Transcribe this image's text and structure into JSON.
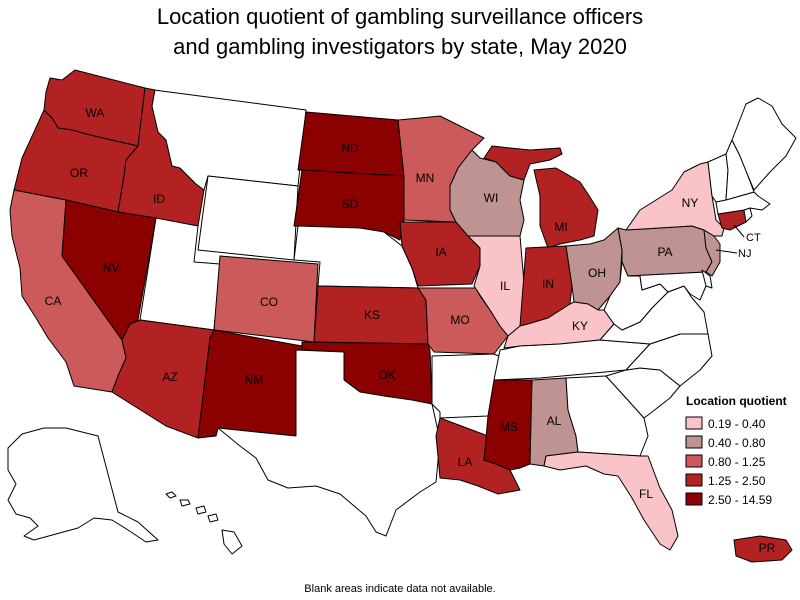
{
  "title": {
    "line1": "Location quotient of gambling surveillance officers",
    "line2": "and gambling investigators by state, May 2020"
  },
  "legend": {
    "title": "Location quotient",
    "classes": [
      {
        "label": "0.19 - 0.40",
        "color": "#f9c3c8"
      },
      {
        "label": "0.40 - 0.80",
        "color": "#bf9391"
      },
      {
        "label": "0.80 - 1.25",
        "color": "#cd5a5a"
      },
      {
        "label": "1.25 - 2.50",
        "color": "#b22222"
      },
      {
        "label": "2.50 - 14.59",
        "color": "#8b0000"
      }
    ]
  },
  "no_data_color": "#ffffff",
  "states": {
    "WA": {
      "label": "WA",
      "class": 3
    },
    "OR": {
      "label": "OR",
      "class": 3
    },
    "ID": {
      "label": "ID",
      "class": 3
    },
    "CA": {
      "label": "CA",
      "class": 2
    },
    "NV": {
      "label": "NV",
      "class": 4
    },
    "AZ": {
      "label": "AZ",
      "class": 3
    },
    "NM": {
      "label": "NM",
      "class": 4
    },
    "CO": {
      "label": "CO",
      "class": 2
    },
    "ND": {
      "label": "ND",
      "class": 4
    },
    "SD": {
      "label": "SD",
      "class": 4
    },
    "KS": {
      "label": "KS",
      "class": 3
    },
    "OK": {
      "label": "OK",
      "class": 4
    },
    "MN": {
      "label": "MN",
      "class": 2
    },
    "IA": {
      "label": "IA",
      "class": 3
    },
    "MO": {
      "label": "MO",
      "class": 2
    },
    "LA": {
      "label": "LA",
      "class": 3
    },
    "WI": {
      "label": "WI",
      "class": 1
    },
    "IL": {
      "label": "IL",
      "class": 0
    },
    "MI": {
      "label": "MI",
      "class": 3
    },
    "IN": {
      "label": "IN",
      "class": 3
    },
    "OH": {
      "label": "OH",
      "class": 1
    },
    "KY": {
      "label": "KY",
      "class": 0
    },
    "MS": {
      "label": "MS",
      "class": 4
    },
    "AL": {
      "label": "AL",
      "class": 1
    },
    "FL": {
      "label": "FL",
      "class": 0
    },
    "PA": {
      "label": "PA",
      "class": 1
    },
    "NY": {
      "label": "NY",
      "class": 0
    },
    "NJ": {
      "label": "NJ",
      "class": 1
    },
    "CT": {
      "label": "CT",
      "class": 3
    },
    "PR": {
      "label": "PR",
      "class": 3
    },
    "MT": {
      "label": "",
      "class": null
    },
    "WY": {
      "label": "",
      "class": null
    },
    "UT": {
      "label": "",
      "class": null
    },
    "NE": {
      "label": "",
      "class": null
    },
    "TX": {
      "label": "",
      "class": null
    },
    "AR": {
      "label": "",
      "class": null
    },
    "TN": {
      "label": "",
      "class": null
    },
    "GA": {
      "label": "",
      "class": null
    },
    "SC": {
      "label": "",
      "class": null
    },
    "NC": {
      "label": "",
      "class": null
    },
    "VA": {
      "label": "",
      "class": null
    },
    "WV": {
      "label": "",
      "class": null
    },
    "MD": {
      "label": "",
      "class": null
    },
    "DE": {
      "label": "",
      "class": null
    },
    "VT": {
      "label": "",
      "class": null
    },
    "NH": {
      "label": "",
      "class": null
    },
    "ME": {
      "label": "",
      "class": null
    },
    "MA": {
      "label": "",
      "class": null
    },
    "RI": {
      "label": "",
      "class": null
    },
    "AK": {
      "label": "",
      "class": null
    },
    "HI": {
      "label": "",
      "class": null
    }
  },
  "footnote": "Blank areas indicate data not available."
}
